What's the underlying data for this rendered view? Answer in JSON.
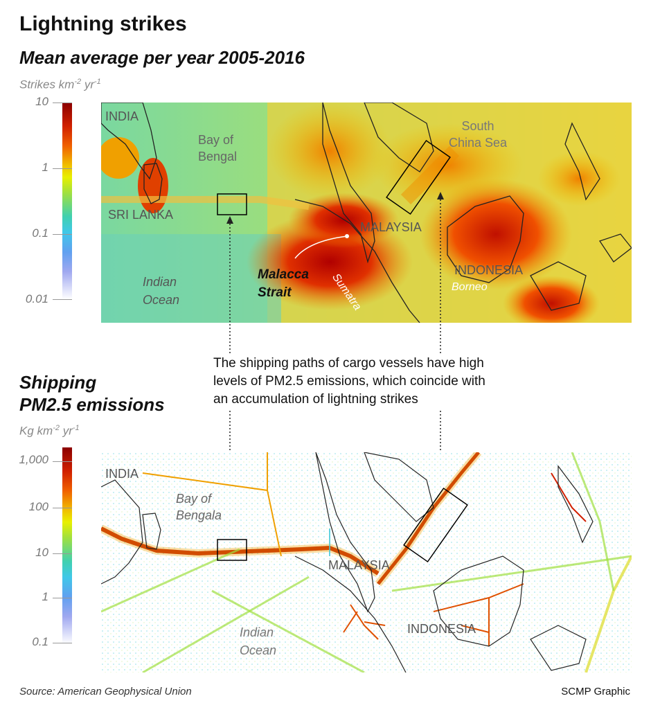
{
  "header": {
    "title": "Lightning strikes",
    "subtitle": "Mean average per year 2005-2016"
  },
  "lightning": {
    "unit_main": "Strikes km",
    "unit_exp1": "-2",
    "unit_mid": " yr",
    "unit_exp2": "-1",
    "scale_ticks": [
      "10",
      "1",
      "0.1",
      "0.01"
    ],
    "labels": {
      "india": "INDIA",
      "bay_line1": "Bay of",
      "bay_line2": "Bengal",
      "sri_lanka": "SRI LANKA",
      "indian_line1": "Indian",
      "indian_line2": "Ocean",
      "malacca_line1": "Malacca",
      "malacca_line2": "Strait",
      "sumatra": "Sumatra",
      "malaysia": "MALAYSIA",
      "indonesia": "INDONESIA",
      "borneo": "Borneo",
      "scs_line1": "South",
      "scs_line2": "China Sea"
    }
  },
  "shipping": {
    "title_line1": "Shipping",
    "title_line2": "PM2.5 emissions",
    "unit_main": "Kg km",
    "unit_exp1": "-2",
    "unit_mid": " yr",
    "unit_exp2": "-1",
    "scale_ticks": [
      "1,000",
      "100",
      "10",
      "1",
      "0.1"
    ],
    "labels": {
      "india": "INDIA",
      "bay_line1": "Bay of",
      "bay_line2": "Bengala",
      "malaysia": "MALAYSIA",
      "indonesia": "INDONESIA",
      "indian_line1": "Indian",
      "indian_line2": "Ocean"
    }
  },
  "annotation": {
    "line1": "The shipping paths of cargo vessels have high",
    "line2": "levels of PM2.5 emissions, which coincide with",
    "line3": "an accumulation of lightning strikes"
  },
  "footer": {
    "source": "Source: American Geophysical Union",
    "credit": "SCMP Graphic"
  },
  "colors": {
    "low": "#c8c8f0",
    "mid_low": "#40c8d8",
    "mid": "#e8e800",
    "high": "#f08000",
    "max": "#b00000"
  }
}
